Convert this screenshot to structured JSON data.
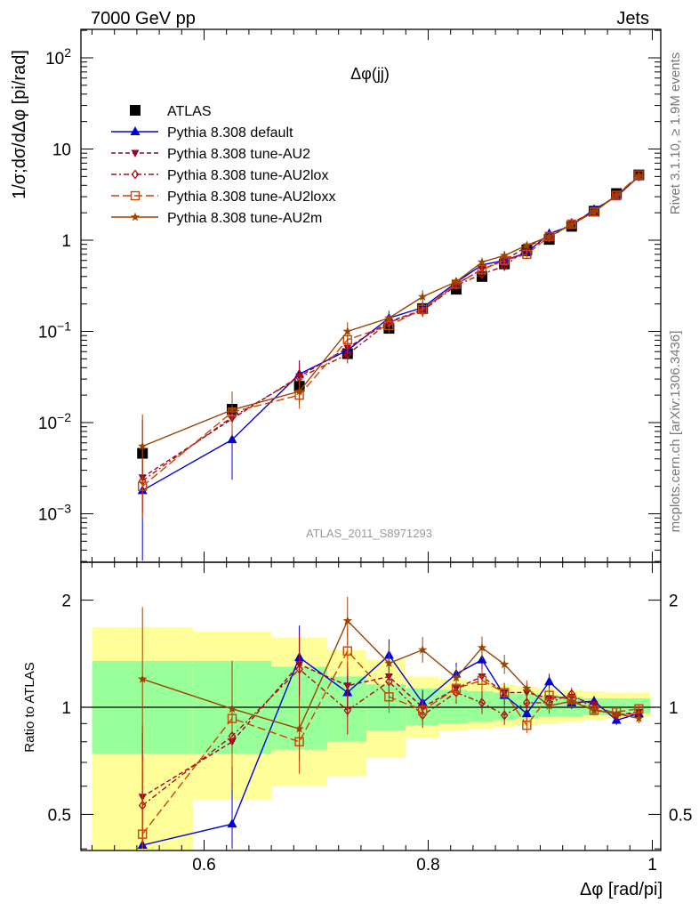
{
  "header": {
    "energy": "7000 GeV pp",
    "process": "Jets"
  },
  "side_labels": {
    "rivet": "Rivet 3.1.10, ≥ 1.9M events",
    "mcplots": "mcplots.cern.ch [arXiv:1306.3436]"
  },
  "analysis_id": "ATLAS_2011_S8971293",
  "colors": {
    "ATLAS": "#000000",
    "default": "#0000dd",
    "AU2": "#990033",
    "AU2lox": "#aa1111",
    "AU2loxx": "#cc4400",
    "AU2m": "#994400",
    "band_inner": "#99ff99",
    "band_outer": "#ffff99"
  },
  "chart_data": [
    {
      "type": "scatter",
      "title": "Δφ(jj)",
      "ylabel": "1/σ;dσ/dΔφ [pi/rad]",
      "xlabel": "Δφ [rad/pi]",
      "yscale": "log",
      "xlim": [
        0.5,
        1.0
      ],
      "ylim": [
        0.0003,
        200
      ],
      "x": [
        0.545,
        0.625,
        0.685,
        0.728,
        0.765,
        0.795,
        0.825,
        0.848,
        0.868,
        0.888,
        0.908,
        0.928,
        0.948,
        0.968,
        0.988
      ],
      "yticks": [
        "10^-3",
        "10^-2",
        "10^-1",
        "1",
        "10",
        "10^2"
      ],
      "legend_position": "top-left",
      "series": [
        {
          "name": "ATLAS",
          "marker": "square",
          "values": [
            0.0046,
            0.014,
            0.025,
            0.057,
            0.108,
            0.178,
            0.29,
            0.4,
            0.55,
            0.78,
            1.02,
            1.42,
            2.08,
            3.25,
            5.2
          ]
        },
        {
          "name": "Pythia 8.308 default",
          "marker": "triangle-up",
          "line": "solid",
          "values": [
            0.0018,
            0.0065,
            0.034,
            0.062,
            0.14,
            0.182,
            0.345,
            0.535,
            0.6,
            0.73,
            1.18,
            1.45,
            2.17,
            3.0,
            5.0
          ]
        },
        {
          "name": "Pythia 8.308 tune-AU2",
          "marker": "triangle-down",
          "line": "dashed",
          "values": [
            0.0025,
            0.011,
            0.032,
            0.066,
            0.128,
            0.172,
            0.33,
            0.48,
            0.6,
            0.85,
            1.1,
            1.5,
            2.1,
            3.1,
            5.0
          ]
        },
        {
          "name": "Pythia 8.308 tune-AU2lox",
          "marker": "diamond",
          "line": "dashdot",
          "values": [
            0.0023,
            0.0115,
            0.031,
            0.056,
            0.126,
            0.168,
            0.32,
            0.425,
            0.52,
            0.8,
            1.05,
            1.55,
            2.06,
            3.1,
            5.0
          ]
        },
        {
          "name": "Pythia 8.308 tune-AU2loxx",
          "marker": "square-open",
          "line": "longdash",
          "values": [
            0.002,
            0.013,
            0.02,
            0.081,
            0.116,
            0.175,
            0.33,
            0.475,
            0.6,
            0.7,
            1.1,
            1.5,
            2.04,
            3.1,
            5.2
          ]
        },
        {
          "name": "Pythia 8.308 tune-AU2m",
          "marker": "star",
          "line": "solid",
          "values": [
            0.0055,
            0.0138,
            0.022,
            0.1,
            0.14,
            0.24,
            0.35,
            0.575,
            0.68,
            0.88,
            1.1,
            1.48,
            2.05,
            3.1,
            5.0
          ]
        }
      ]
    },
    {
      "type": "scatter",
      "ylabel": "Ratio to ATLAS",
      "xlabel": "Δφ [rad/pi]",
      "xlim": [
        0.5,
        1.0
      ],
      "ylim": [
        0.34,
        2.3
      ],
      "xticks": [
        "0.6",
        "0.8",
        "1"
      ],
      "yticks": [
        "0.5",
        "1",
        "2"
      ],
      "reference_line": 1,
      "bins": [
        [
          0.5,
          0.59
        ],
        [
          0.59,
          0.66
        ],
        [
          0.66,
          0.71
        ],
        [
          0.71,
          0.745
        ],
        [
          0.745,
          0.78
        ],
        [
          0.78,
          0.81
        ],
        [
          0.81,
          0.835
        ],
        [
          0.835,
          0.858
        ],
        [
          0.858,
          0.878
        ],
        [
          0.878,
          0.898
        ],
        [
          0.898,
          0.918
        ],
        [
          0.918,
          0.938
        ],
        [
          0.938,
          0.958
        ],
        [
          0.958,
          0.978
        ],
        [
          0.978,
          1.0
        ]
      ],
      "band_inner": [
        [
          0.74,
          1.35
        ],
        [
          0.74,
          1.35
        ],
        [
          0.76,
          1.3
        ],
        [
          0.8,
          1.22
        ],
        [
          0.86,
          1.16
        ],
        [
          0.89,
          1.13
        ],
        [
          0.9,
          1.12
        ],
        [
          0.91,
          1.11
        ],
        [
          0.92,
          1.1
        ],
        [
          0.93,
          1.09
        ],
        [
          0.94,
          1.08
        ],
        [
          0.94,
          1.07
        ],
        [
          0.95,
          1.06
        ],
        [
          0.95,
          1.06
        ],
        [
          0.96,
          1.06
        ]
      ],
      "band_outer": [
        [
          0.3,
          1.68
        ],
        [
          0.55,
          1.63
        ],
        [
          0.6,
          1.57
        ],
        [
          0.64,
          1.45
        ],
        [
          0.72,
          1.36
        ],
        [
          0.82,
          1.22
        ],
        [
          0.86,
          1.2
        ],
        [
          0.87,
          1.18
        ],
        [
          0.88,
          1.16
        ],
        [
          0.89,
          1.14
        ],
        [
          0.9,
          1.13
        ],
        [
          0.91,
          1.12
        ],
        [
          0.92,
          1.11
        ],
        [
          0.93,
          1.1
        ],
        [
          0.94,
          1.1
        ]
      ],
      "series": [
        {
          "name": "Pythia 8.308 default",
          "values": [
            0.36,
            0.47,
            1.38,
            1.1,
            1.4,
            1.03,
            1.24,
            1.36,
            1.08,
            0.96,
            1.18,
            1.03,
            1.04,
            0.92,
            0.96
          ]
        },
        {
          "name": "Pythia 8.308 tune-AU2",
          "values": [
            0.56,
            0.8,
            1.32,
            1.15,
            1.22,
            1.0,
            1.13,
            1.22,
            1.1,
            1.1,
            1.06,
            1.07,
            1.02,
            0.95,
            0.97
          ]
        },
        {
          "name": "Pythia 8.308 tune-AU2lox",
          "values": [
            0.53,
            0.83,
            1.28,
            0.98,
            1.18,
            0.95,
            1.1,
            1.03,
            0.95,
            1.03,
            1.03,
            1.09,
            0.99,
            0.95,
            0.96
          ]
        },
        {
          "name": "Pythia 8.308 tune-AU2loxx",
          "values": [
            0.44,
            0.93,
            0.8,
            1.44,
            1.07,
            0.98,
            1.13,
            1.19,
            1.1,
            0.89,
            1.08,
            1.05,
            0.98,
            0.97,
            0.99
          ]
        },
        {
          "name": "Pythia 8.308 tune-AU2m",
          "values": [
            1.2,
            0.99,
            0.87,
            1.75,
            1.33,
            1.45,
            1.21,
            1.47,
            1.32,
            1.13,
            1.01,
            1.04,
            0.98,
            0.96,
            0.93
          ]
        }
      ]
    }
  ]
}
